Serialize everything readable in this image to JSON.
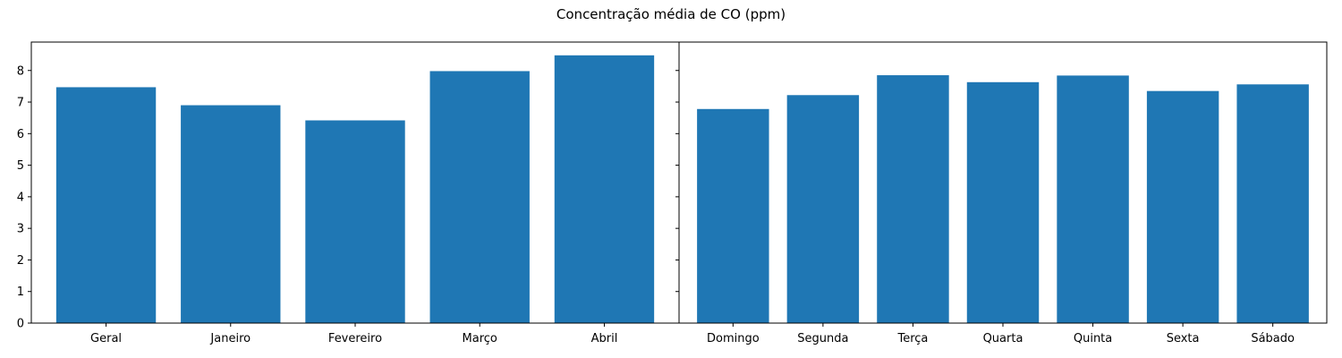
{
  "figure": {
    "suptitle": "Concentração média de CO (ppm)"
  },
  "chart_data": [
    {
      "type": "bar",
      "categories": [
        "Geral",
        "Janeiro",
        "Fevereiro",
        "Março",
        "Abril"
      ],
      "values": [
        7.47,
        6.9,
        6.42,
        7.98,
        8.48
      ],
      "ylim": [
        0,
        8.9
      ],
      "yticks": [
        0,
        1,
        2,
        3,
        4,
        5,
        6,
        7,
        8
      ],
      "color": "#1f77b4",
      "grid": false
    },
    {
      "type": "bar",
      "categories": [
        "Domingo",
        "Segunda",
        "Terça",
        "Quarta",
        "Quinta",
        "Sexta",
        "Sábado"
      ],
      "values": [
        6.78,
        7.22,
        7.85,
        7.63,
        7.84,
        7.35,
        7.56
      ],
      "ylim": [
        0,
        8.9
      ],
      "shared_y": true,
      "color": "#1f77b4",
      "grid": false
    }
  ]
}
